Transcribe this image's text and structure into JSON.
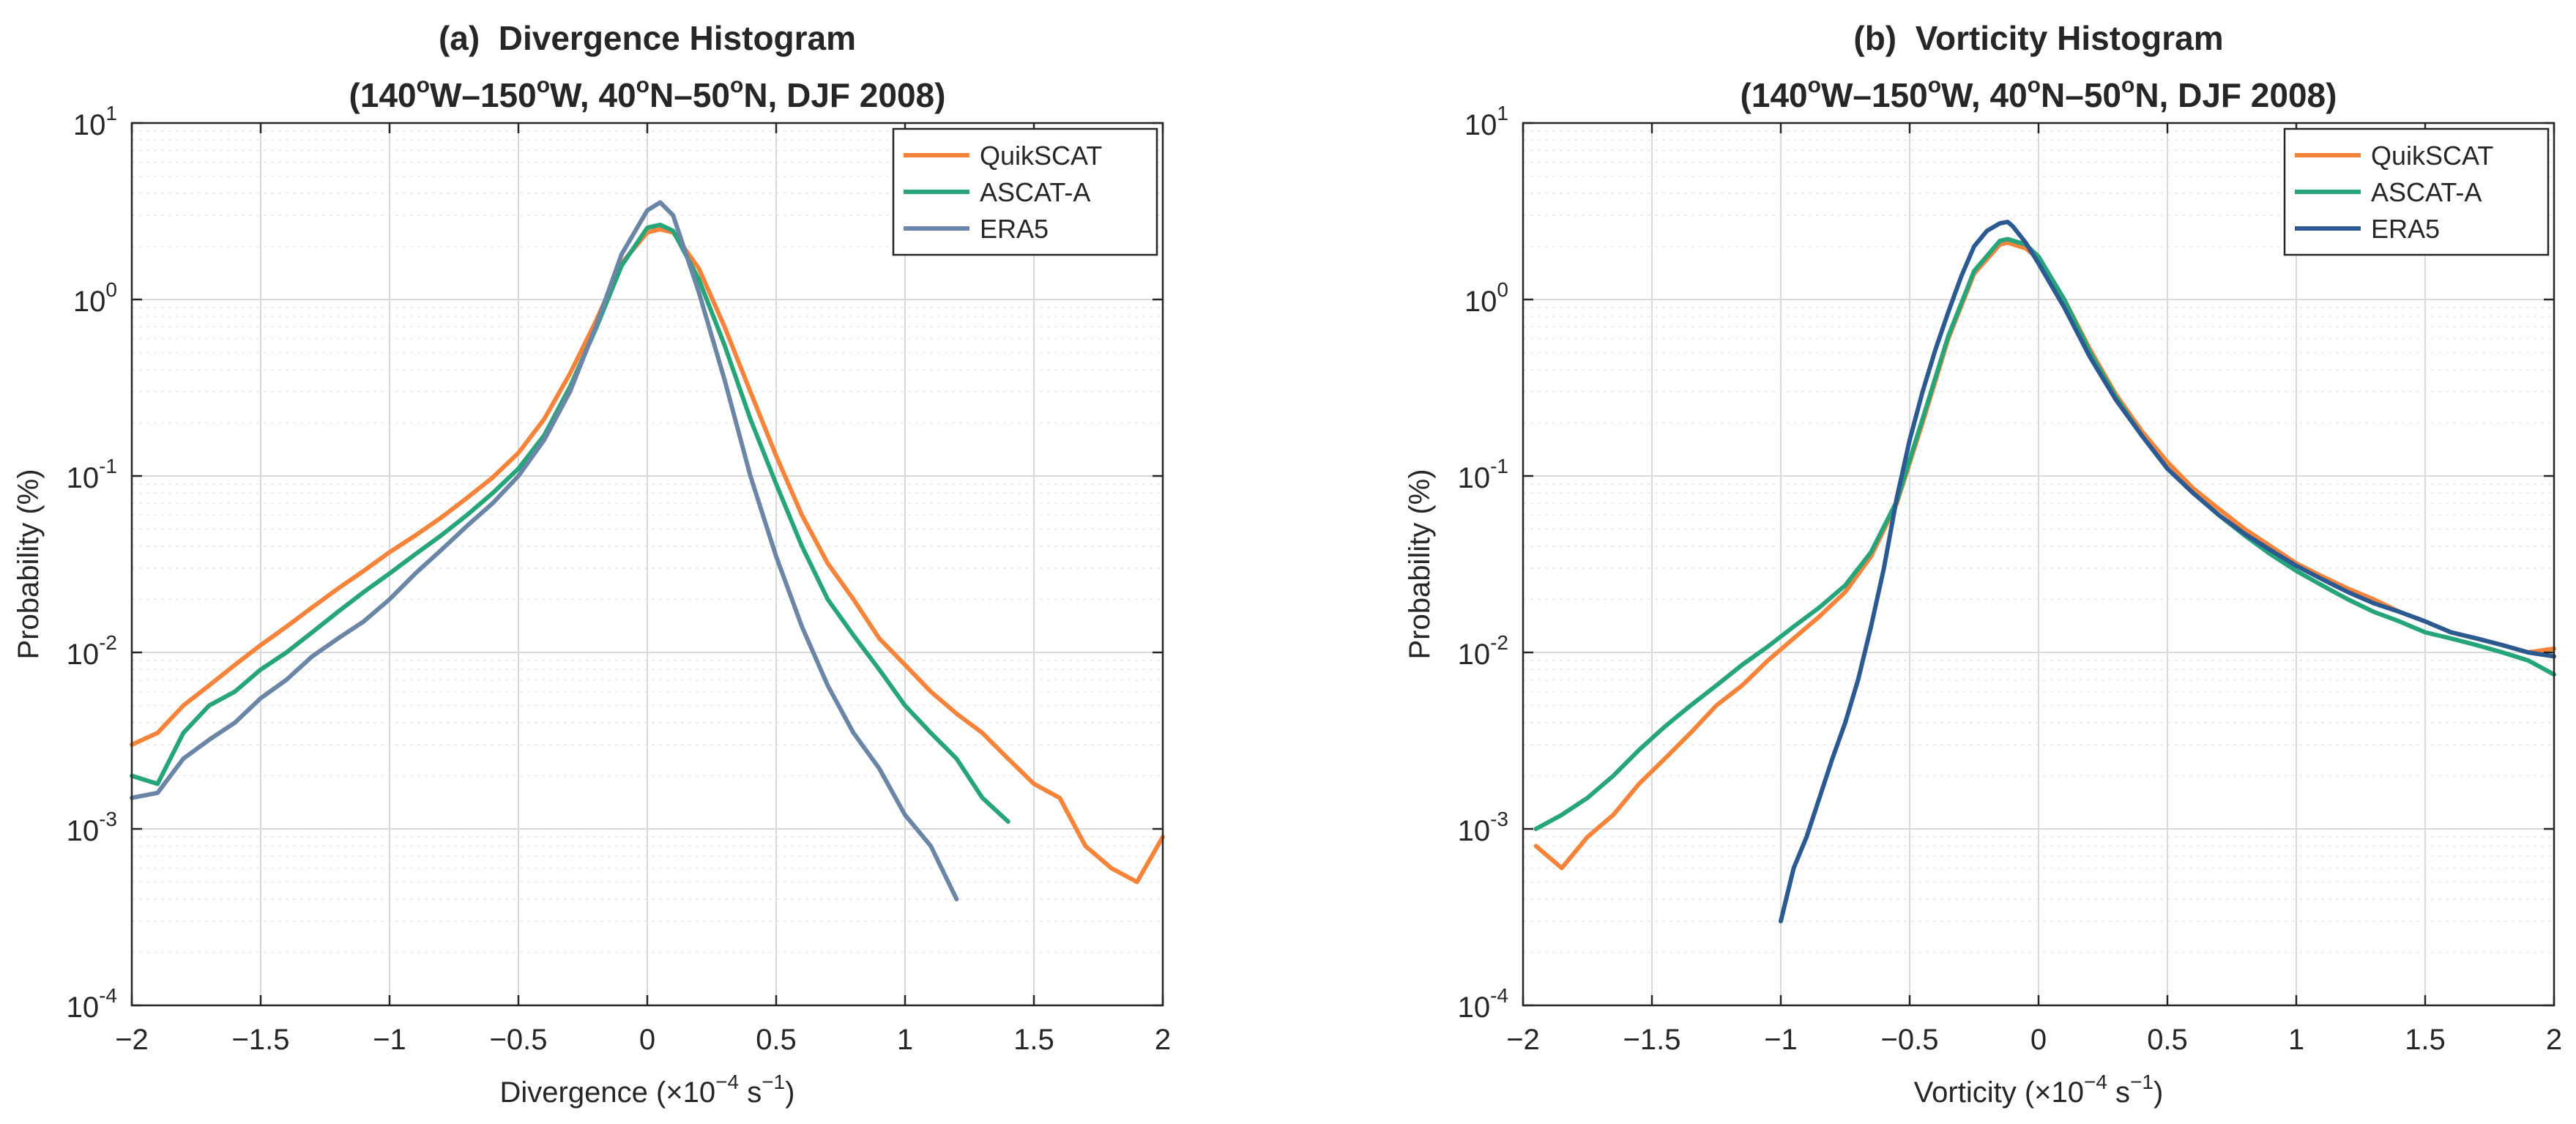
{
  "figure": {
    "colors": {
      "quikscat": "#F5843A",
      "ascat": "#27A57A",
      "era5_a": "#6A85A5",
      "era5_b": "#2B5A93",
      "grid_major": "#d9d9d9",
      "grid_minor": "#ececec",
      "axis": "#262626"
    }
  },
  "chart_data": [
    {
      "type": "line",
      "panel_label": "(a)",
      "title": "Divergence Histogram",
      "subtitle_text": "(140°W–150°W, 40°N–50°N, DJF 2008)",
      "title_parts": {
        "lon1": "140",
        "lon2": "150",
        "lat1": "40",
        "lat2": "50",
        "deg": "o",
        "w": "W",
        "n": "N",
        "dash": "–",
        "open": "(",
        "close": ")",
        "sep": ", ",
        "season": ", DJF 2008)"
      },
      "xlabel": "Divergence (×10⁻⁴ s⁻¹)",
      "xlabel_parts": {
        "main": "Divergence (×10",
        "exp1": "−4",
        "mid": " s",
        "exp2": "−1",
        "end": ")"
      },
      "ylabel": "Probability (%)",
      "yscale": "log",
      "xlim": [
        -2,
        2
      ],
      "ylim": [
        0.0001,
        10
      ],
      "xticks": [
        -2,
        -1.5,
        -1,
        -0.5,
        0,
        0.5,
        1,
        1.5,
        2
      ],
      "xtick_labels": [
        "−2",
        "−1.5",
        "−1",
        "−0.5",
        "0",
        "0.5",
        "1",
        "1.5",
        "2"
      ],
      "yticks": [
        {
          "base": "10",
          "exp": "1"
        },
        {
          "base": "10",
          "exp": "0"
        },
        {
          "base": "10",
          "exp": "-1"
        },
        {
          "base": "10",
          "exp": "-2"
        },
        {
          "base": "10",
          "exp": "-3"
        },
        {
          "base": "10",
          "exp": "-4"
        }
      ],
      "grid": true,
      "legend_position": "top-right",
      "series": [
        {
          "name": "QuikSCAT",
          "color": "#F5843A",
          "x": [
            -2,
            -1.9,
            -1.8,
            -1.7,
            -1.6,
            -1.5,
            -1.4,
            -1.3,
            -1.2,
            -1.1,
            -1.0,
            -0.9,
            -0.8,
            -0.7,
            -0.6,
            -0.5,
            -0.4,
            -0.3,
            -0.2,
            -0.1,
            0.0,
            0.05,
            0.1,
            0.2,
            0.3,
            0.4,
            0.5,
            0.6,
            0.7,
            0.8,
            0.9,
            1.0,
            1.1,
            1.2,
            1.3,
            1.4,
            1.5,
            1.6,
            1.7,
            1.8,
            1.9,
            2.0
          ],
          "y": [
            0.003,
            0.0035,
            0.005,
            0.0065,
            0.0085,
            0.011,
            0.014,
            0.018,
            0.023,
            0.029,
            0.037,
            0.046,
            0.058,
            0.075,
            0.098,
            0.135,
            0.21,
            0.38,
            0.75,
            1.6,
            2.4,
            2.5,
            2.4,
            1.5,
            0.7,
            0.3,
            0.13,
            0.06,
            0.032,
            0.02,
            0.012,
            0.0085,
            0.006,
            0.0045,
            0.0035,
            0.0025,
            0.0018,
            0.0015,
            0.0008,
            0.0006,
            0.0005,
            0.0009
          ]
        },
        {
          "name": "ASCAT-A",
          "color": "#27A57A",
          "x": [
            -2,
            -1.9,
            -1.8,
            -1.7,
            -1.6,
            -1.5,
            -1.4,
            -1.3,
            -1.2,
            -1.1,
            -1.0,
            -0.9,
            -0.8,
            -0.7,
            -0.6,
            -0.5,
            -0.4,
            -0.3,
            -0.2,
            -0.1,
            0.0,
            0.05,
            0.1,
            0.2,
            0.3,
            0.4,
            0.5,
            0.6,
            0.7,
            0.8,
            0.9,
            1.0,
            1.1,
            1.2,
            1.3,
            1.4
          ],
          "y": [
            0.002,
            0.0018,
            0.0035,
            0.005,
            0.006,
            0.008,
            0.01,
            0.013,
            0.017,
            0.022,
            0.028,
            0.036,
            0.046,
            0.06,
            0.08,
            0.11,
            0.17,
            0.32,
            0.68,
            1.55,
            2.55,
            2.65,
            2.45,
            1.3,
            0.55,
            0.21,
            0.09,
            0.04,
            0.02,
            0.0125,
            0.008,
            0.005,
            0.0035,
            0.0025,
            0.0015,
            0.0011
          ]
        },
        {
          "name": "ERA5",
          "color": "#6A85A5",
          "x": [
            -2,
            -1.9,
            -1.8,
            -1.7,
            -1.6,
            -1.5,
            -1.4,
            -1.3,
            -1.2,
            -1.1,
            -1.0,
            -0.9,
            -0.8,
            -0.7,
            -0.6,
            -0.5,
            -0.4,
            -0.3,
            -0.2,
            -0.1,
            0.0,
            0.05,
            0.1,
            0.2,
            0.3,
            0.4,
            0.5,
            0.6,
            0.7,
            0.8,
            0.9,
            1.0,
            1.1,
            1.2
          ],
          "y": [
            0.0015,
            0.0016,
            0.0025,
            0.0032,
            0.004,
            0.0055,
            0.007,
            0.0095,
            0.012,
            0.015,
            0.02,
            0.028,
            0.038,
            0.052,
            0.07,
            0.1,
            0.16,
            0.3,
            0.7,
            1.8,
            3.2,
            3.55,
            3.0,
            1.1,
            0.35,
            0.1,
            0.035,
            0.014,
            0.0065,
            0.0035,
            0.0022,
            0.0012,
            0.0008,
            0.0004
          ]
        }
      ]
    },
    {
      "type": "line",
      "panel_label": "(b)",
      "title": "Vorticity Histogram",
      "subtitle_text": "(140°W–150°W, 40°N–50°N, DJF 2008)",
      "title_parts": {
        "lon1": "140",
        "lon2": "150",
        "lat1": "40",
        "lat2": "50",
        "deg": "o",
        "w": "W",
        "n": "N",
        "dash": "–",
        "open": "(",
        "close": ")",
        "sep": ", ",
        "season": ", DJF 2008)"
      },
      "xlabel": "Vorticity (×10⁻⁴ s⁻¹)",
      "xlabel_parts": {
        "main": "Vorticity (×10",
        "exp1": "−4",
        "mid": " s",
        "exp2": "−1",
        "end": ")"
      },
      "ylabel": "Probability (%)",
      "yscale": "log",
      "xlim": [
        -2,
        2
      ],
      "ylim": [
        0.0001,
        10
      ],
      "xticks": [
        -2,
        -1.5,
        -1,
        -0.5,
        0,
        0.5,
        1,
        1.5,
        2
      ],
      "xtick_labels": [
        "−2",
        "−1.5",
        "−1",
        "−0.5",
        "0",
        "0.5",
        "1",
        "1.5",
        "2"
      ],
      "yticks": [
        {
          "base": "10",
          "exp": "1"
        },
        {
          "base": "10",
          "exp": "0"
        },
        {
          "base": "10",
          "exp": "-1"
        },
        {
          "base": "10",
          "exp": "-2"
        },
        {
          "base": "10",
          "exp": "-3"
        },
        {
          "base": "10",
          "exp": "-4"
        }
      ],
      "grid": true,
      "legend_position": "top-right",
      "series": [
        {
          "name": "QuikSCAT",
          "color": "#F5843A",
          "x": [
            -1.95,
            -1.85,
            -1.75,
            -1.65,
            -1.55,
            -1.45,
            -1.35,
            -1.25,
            -1.15,
            -1.05,
            -0.95,
            -0.85,
            -0.75,
            -0.65,
            -0.55,
            -0.45,
            -0.35,
            -0.25,
            -0.15,
            -0.12,
            -0.05,
            0.0,
            0.1,
            0.2,
            0.3,
            0.4,
            0.5,
            0.6,
            0.7,
            0.8,
            0.9,
            1.0,
            1.1,
            1.2,
            1.3,
            1.4,
            1.5,
            1.6,
            1.7,
            1.8,
            1.9,
            2.0
          ],
          "y": [
            0.0008,
            0.0006,
            0.0009,
            0.0012,
            0.0018,
            0.0025,
            0.0035,
            0.005,
            0.0065,
            0.009,
            0.012,
            0.016,
            0.022,
            0.035,
            0.07,
            0.2,
            0.6,
            1.4,
            2.05,
            2.1,
            1.95,
            1.7,
            1.0,
            0.52,
            0.29,
            0.18,
            0.12,
            0.085,
            0.065,
            0.05,
            0.04,
            0.032,
            0.027,
            0.023,
            0.02,
            0.017,
            0.015,
            0.013,
            0.012,
            0.011,
            0.01,
            0.0105
          ]
        },
        {
          "name": "ASCAT-A",
          "color": "#27A57A",
          "x": [
            -1.95,
            -1.85,
            -1.75,
            -1.65,
            -1.55,
            -1.45,
            -1.35,
            -1.25,
            -1.15,
            -1.05,
            -0.95,
            -0.85,
            -0.75,
            -0.65,
            -0.55,
            -0.45,
            -0.35,
            -0.25,
            -0.15,
            -0.12,
            -0.05,
            0.0,
            0.1,
            0.2,
            0.3,
            0.4,
            0.5,
            0.6,
            0.7,
            0.8,
            0.9,
            1.0,
            1.1,
            1.2,
            1.3,
            1.4,
            1.5,
            1.6,
            1.7,
            1.8,
            1.9,
            2.0
          ],
          "y": [
            0.001,
            0.0012,
            0.0015,
            0.002,
            0.0028,
            0.0038,
            0.005,
            0.0065,
            0.0085,
            0.0108,
            0.014,
            0.018,
            0.024,
            0.037,
            0.072,
            0.21,
            0.62,
            1.45,
            2.15,
            2.2,
            2.05,
            1.75,
            1.0,
            0.5,
            0.28,
            0.17,
            0.11,
            0.08,
            0.06,
            0.046,
            0.036,
            0.029,
            0.024,
            0.02,
            0.017,
            0.015,
            0.013,
            0.012,
            0.011,
            0.01,
            0.009,
            0.0075
          ]
        },
        {
          "name": "ERA5",
          "color": "#2B5A93",
          "x": [
            -1.0,
            -0.95,
            -0.9,
            -0.85,
            -0.8,
            -0.75,
            -0.7,
            -0.65,
            -0.6,
            -0.55,
            -0.5,
            -0.45,
            -0.4,
            -0.35,
            -0.3,
            -0.25,
            -0.2,
            -0.15,
            -0.12,
            -0.1,
            -0.05,
            0.0,
            0.1,
            0.2,
            0.3,
            0.4,
            0.5,
            0.6,
            0.7,
            0.8,
            0.9,
            1.0,
            1.1,
            1.2,
            1.3,
            1.4,
            1.5,
            1.6,
            1.7,
            1.8,
            1.9,
            2.0
          ],
          "y": [
            0.0003,
            0.0006,
            0.0009,
            0.0015,
            0.0025,
            0.004,
            0.007,
            0.014,
            0.03,
            0.075,
            0.16,
            0.3,
            0.52,
            0.85,
            1.35,
            2.0,
            2.45,
            2.7,
            2.75,
            2.6,
            2.1,
            1.6,
            0.9,
            0.47,
            0.27,
            0.17,
            0.11,
            0.08,
            0.06,
            0.047,
            0.038,
            0.031,
            0.026,
            0.022,
            0.019,
            0.017,
            0.015,
            0.013,
            0.012,
            0.011,
            0.01,
            0.0095
          ]
        }
      ]
    }
  ]
}
